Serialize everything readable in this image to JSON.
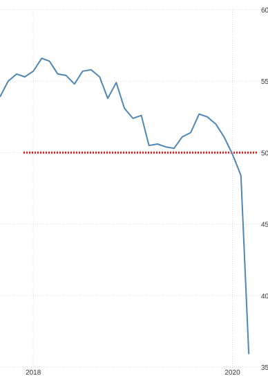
{
  "chart_data": {
    "type": "line",
    "title": "",
    "xlabel": "",
    "ylabel": "",
    "ylim": [
      35,
      60
    ],
    "xlim": [
      "2017-09-01",
      "2020-04-15"
    ],
    "y_ticks": [
      {
        "value": 60,
        "label": "60"
      },
      {
        "value": 55,
        "label": "55"
      },
      {
        "value": 50,
        "label": "50"
      },
      {
        "value": 45,
        "label": "45"
      },
      {
        "value": 40,
        "label": "40"
      },
      {
        "value": 35,
        "label": "35"
      }
    ],
    "x_ticks": [
      {
        "value": "2018-01-01",
        "label": "2018"
      },
      {
        "value": "2020-01-01",
        "label": "2020"
      }
    ],
    "grid": true,
    "reference_line": {
      "y": 50,
      "color": "#e31a1c",
      "style": "dotted"
    },
    "series": [
      {
        "color": "#4f86b4",
        "points": [
          {
            "x": "2017-09-01",
            "y": 53.9
          },
          {
            "x": "2017-10-01",
            "y": 55.0
          },
          {
            "x": "2017-11-01",
            "y": 55.5
          },
          {
            "x": "2017-12-01",
            "y": 55.3
          },
          {
            "x": "2018-01-01",
            "y": 55.7
          },
          {
            "x": "2018-02-01",
            "y": 56.6
          },
          {
            "x": "2018-03-01",
            "y": 56.4
          },
          {
            "x": "2018-04-01",
            "y": 55.5
          },
          {
            "x": "2018-05-01",
            "y": 55.4
          },
          {
            "x": "2018-06-01",
            "y": 54.8
          },
          {
            "x": "2018-07-01",
            "y": 55.7
          },
          {
            "x": "2018-08-01",
            "y": 55.8
          },
          {
            "x": "2018-09-01",
            "y": 55.3
          },
          {
            "x": "2018-10-01",
            "y": 53.8
          },
          {
            "x": "2018-11-01",
            "y": 54.9
          },
          {
            "x": "2018-12-01",
            "y": 53.1
          },
          {
            "x": "2019-01-01",
            "y": 52.4
          },
          {
            "x": "2019-02-01",
            "y": 52.6
          },
          {
            "x": "2019-03-01",
            "y": 50.5
          },
          {
            "x": "2019-04-01",
            "y": 50.6
          },
          {
            "x": "2019-05-01",
            "y": 50.4
          },
          {
            "x": "2019-06-01",
            "y": 50.3
          },
          {
            "x": "2019-07-01",
            "y": 51.1
          },
          {
            "x": "2019-08-01",
            "y": 51.4
          },
          {
            "x": "2019-09-01",
            "y": 52.7
          },
          {
            "x": "2019-10-01",
            "y": 52.5
          },
          {
            "x": "2019-11-01",
            "y": 52.0
          },
          {
            "x": "2019-12-01",
            "y": 51.1
          },
          {
            "x": "2020-01-01",
            "y": 49.9
          },
          {
            "x": "2020-02-01",
            "y": 48.4
          },
          {
            "x": "2020-03-01",
            "y": 35.9
          }
        ]
      }
    ]
  }
}
